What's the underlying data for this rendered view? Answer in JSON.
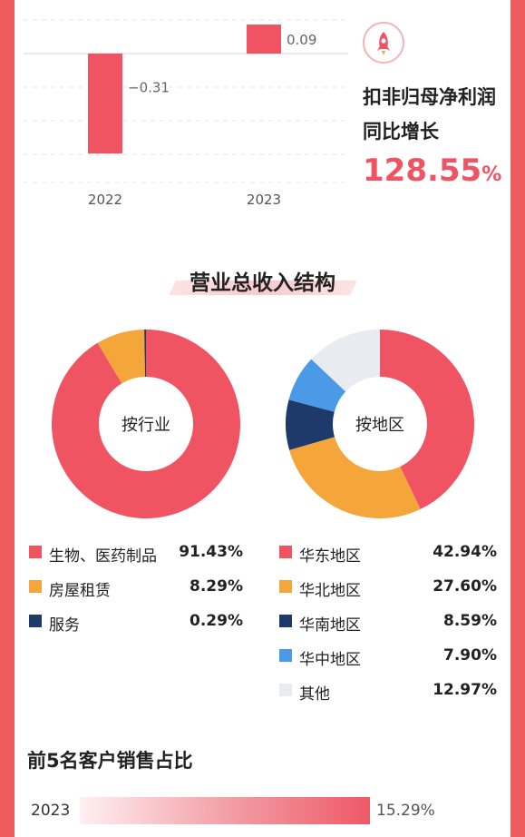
{
  "colors": {
    "accent": "#f05462",
    "orange": "#f4a63a",
    "navy": "#1e3a6b",
    "blue": "#4a9ae8",
    "grey": "#e8ebef"
  },
  "top_chart": {
    "icon": "rocket-icon",
    "metric_title_line1": "扣非归母净利润",
    "metric_title_line2": "同比增长",
    "metric_value": "128.55",
    "metric_unit": "%"
  },
  "section": {
    "revenue_structure_title": "营业总收入结构"
  },
  "customers": {
    "title": "前5名客户销售占比",
    "year": "2023",
    "value_label": "15.29%"
  },
  "chart_data": [
    {
      "type": "bar",
      "categories": [
        "2022",
        "2023"
      ],
      "values": [
        -0.31,
        0.09
      ],
      "value_labels": [
        "−0.31",
        "0.09"
      ]
    },
    {
      "type": "pie",
      "center_label": "按行业",
      "slices": [
        {
          "label": "生物、医药制品",
          "value": 91.43,
          "value_label": "91.43%",
          "color": "#f05462"
        },
        {
          "label": "房屋租赁",
          "value": 8.29,
          "value_label": "8.29%",
          "color": "#f4a63a"
        },
        {
          "label": "服务",
          "value": 0.29,
          "value_label": "0.29%",
          "color": "#1e3a6b"
        }
      ]
    },
    {
      "type": "pie",
      "center_label": "按地区",
      "slices": [
        {
          "label": "华东地区",
          "value": 42.94,
          "value_label": "42.94%",
          "color": "#f05462"
        },
        {
          "label": "华北地区",
          "value": 27.6,
          "value_label": "27.60%",
          "color": "#f4a63a"
        },
        {
          "label": "华南地区",
          "value": 8.59,
          "value_label": "8.59%",
          "color": "#1e3a6b"
        },
        {
          "label": "华中地区",
          "value": 7.9,
          "value_label": "7.90%",
          "color": "#4a9ae8"
        },
        {
          "label": "其他",
          "value": 12.97,
          "value_label": "12.97%",
          "color": "#e8ebef"
        }
      ]
    },
    {
      "type": "bar",
      "categories": [
        "2023"
      ],
      "values": [
        15.29
      ],
      "value_labels": [
        "15.29%"
      ]
    }
  ]
}
